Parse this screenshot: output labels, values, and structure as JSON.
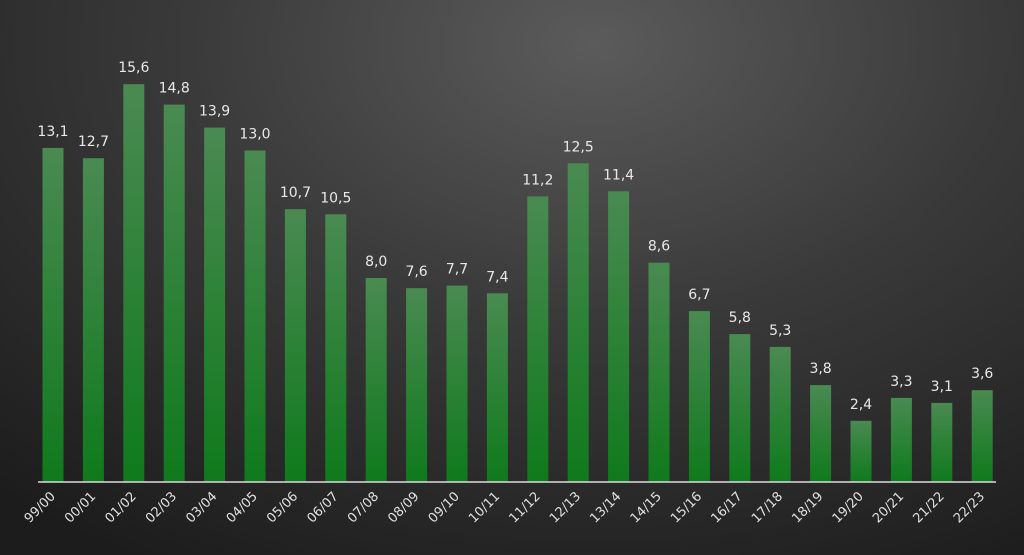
{
  "chart_data": {
    "type": "bar",
    "categories": [
      "99/00",
      "00/01",
      "01/02",
      "02/03",
      "03/04",
      "04/05",
      "05/06",
      "06/07",
      "07/08",
      "08/09",
      "09/10",
      "10/11",
      "11/12",
      "12/13",
      "13/14",
      "14/15",
      "15/16",
      "16/17",
      "17/18",
      "18/19",
      "19/20",
      "20/21",
      "21/22",
      "22/23"
    ],
    "values": [
      13.1,
      12.7,
      15.6,
      14.8,
      13.9,
      13.0,
      10.7,
      10.5,
      8.0,
      7.6,
      7.7,
      7.4,
      11.2,
      12.5,
      11.4,
      8.6,
      6.7,
      5.8,
      5.3,
      3.8,
      2.4,
      3.3,
      3.1,
      3.6
    ],
    "value_labels": [
      "13,1",
      "12,7",
      "15,6",
      "14,8",
      "13,9",
      "13,0",
      "10,7",
      "10,5",
      "8,0",
      "7,6",
      "7,7",
      "7,4",
      "11,2",
      "12,5",
      "11,4",
      "8,6",
      "6,7",
      "5,8",
      "5,3",
      "3,8",
      "2,4",
      "3,3",
      "3,1",
      "3,6"
    ],
    "title": "",
    "xlabel": "",
    "ylabel": "",
    "ylim": [
      0,
      16
    ],
    "grid": false,
    "legend": "none",
    "colors": {
      "bar_top": "#4a8a52",
      "bar_bottom": "#0f7a1c",
      "axis": "#dcdcdc",
      "text": "#e8e8e8"
    }
  }
}
